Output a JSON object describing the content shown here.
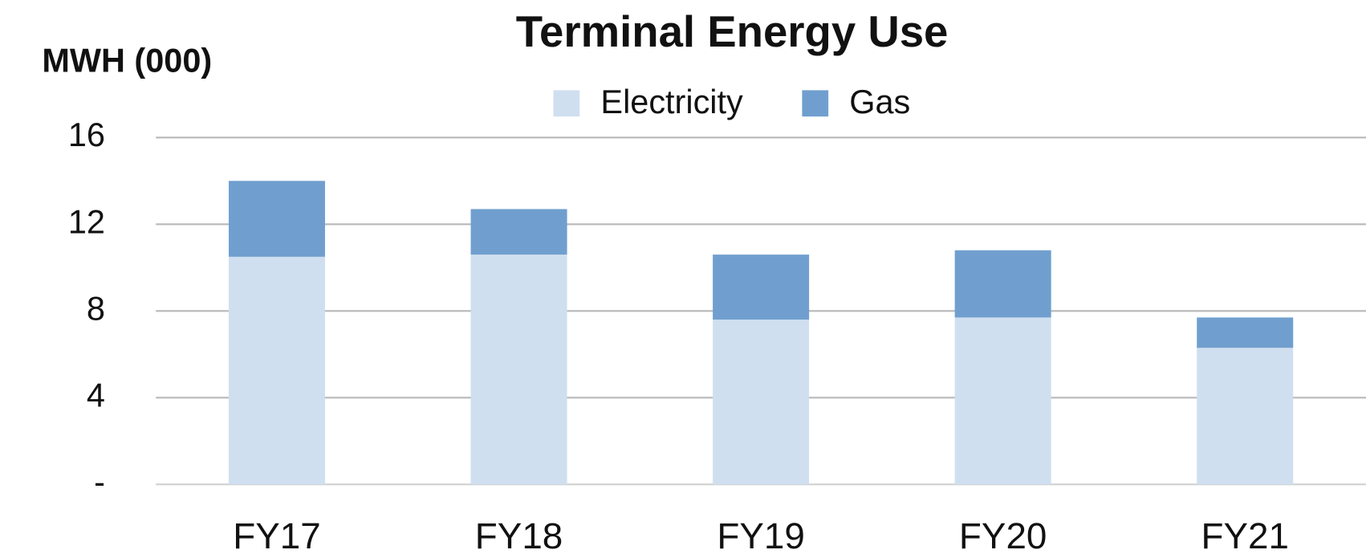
{
  "chart_data": {
    "type": "stacked_bar",
    "title": "Terminal Energy Use",
    "y_label": "MWH (000)",
    "categories": [
      "FY17",
      "FY18",
      "FY19",
      "FY20",
      "FY21"
    ],
    "series": [
      {
        "name": "Electricity",
        "color": "#cfdff0",
        "values": [
          10.5,
          10.6,
          7.6,
          7.7,
          6.3
        ]
      },
      {
        "name": "Gas",
        "color": "#709fcf",
        "values": [
          3.5,
          2.1,
          3.0,
          3.1,
          1.4
        ]
      }
    ],
    "ylim": [
      0,
      16
    ],
    "yticks": [
      {
        "value": 0,
        "label": "-"
      },
      4,
      8,
      12,
      16
    ],
    "grid": true,
    "legend": "top"
  }
}
